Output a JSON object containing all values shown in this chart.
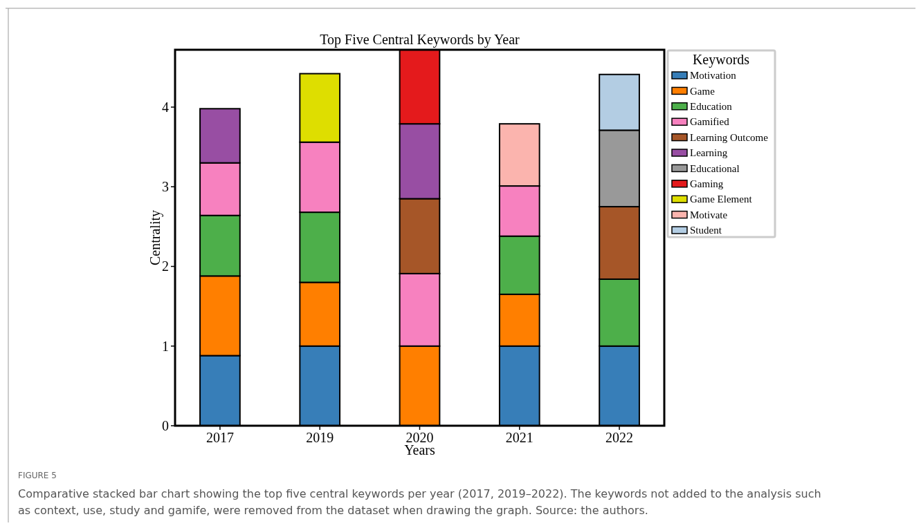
{
  "chart_data": {
    "type": "bar",
    "stacked": true,
    "title": "Top Five Central Keywords by Year",
    "xlabel": "Years",
    "ylabel": "Centrality",
    "legend_title": "Keywords",
    "legend": "top right",
    "grid": false,
    "categories": [
      "2017",
      "2019",
      "2020",
      "2021",
      "2022"
    ],
    "ylim": [
      0,
      4.72
    ],
    "yticks": [
      0,
      1,
      2,
      3,
      4
    ],
    "series": [
      {
        "name": "Motivation",
        "color": "#377eb8",
        "values": [
          0.88,
          1.0,
          null,
          1.0,
          1.0
        ]
      },
      {
        "name": "Game",
        "color": "#ff7f00",
        "values": [
          1.0,
          0.8,
          1.0,
          0.65,
          null
        ]
      },
      {
        "name": "Education",
        "color": "#4daf4a",
        "values": [
          0.76,
          0.88,
          null,
          0.73,
          0.84
        ]
      },
      {
        "name": "Gamified",
        "color": "#f781bf",
        "values": [
          0.66,
          0.88,
          0.91,
          0.63,
          null
        ]
      },
      {
        "name": "Learning Outcome",
        "color": "#a65628",
        "values": [
          null,
          null,
          0.94,
          null,
          0.91
        ]
      },
      {
        "name": "Learning",
        "color": "#984ea3",
        "values": [
          0.68,
          null,
          0.94,
          null,
          null
        ]
      },
      {
        "name": "Educational",
        "color": "#999999",
        "values": [
          null,
          null,
          null,
          null,
          0.96
        ]
      },
      {
        "name": "Gaming",
        "color": "#e41a1c",
        "values": [
          null,
          null,
          0.93,
          null,
          null
        ]
      },
      {
        "name": "Game Element",
        "color": "#dede00",
        "values": [
          null,
          0.86,
          null,
          null,
          null
        ]
      },
      {
        "name": "Motivate",
        "color": "#fbb4ae",
        "values": [
          null,
          null,
          null,
          0.78,
          null
        ]
      },
      {
        "name": "Student",
        "color": "#b3cde3",
        "values": [
          null,
          null,
          null,
          null,
          0.7
        ]
      }
    ],
    "annotations": [
      "FIGURE 5",
      "Comparative stacked bar chart showing the top five central keywords per year (2017, 2019–2022). The keywords not added to the analysis such as context, use, study and gamife, were removed from the dataset when drawing the graph. Source: the authors."
    ]
  }
}
